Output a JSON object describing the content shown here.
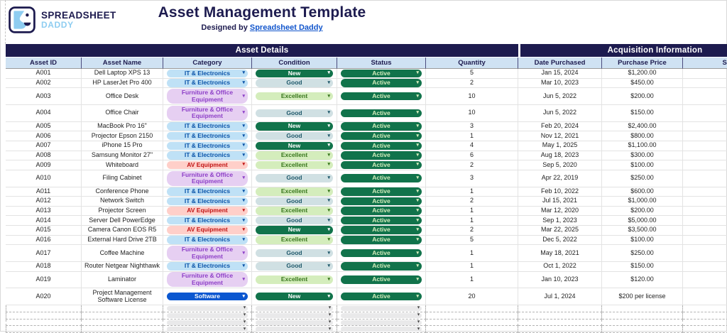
{
  "brand": {
    "name_line1": "SPREADSHEET",
    "name_line2": "DADDY"
  },
  "header": {
    "title": "Asset Management Template",
    "designed_by_prefix": "Designed by ",
    "designed_by_link": "Spreadsheet Daddy"
  },
  "sections": {
    "left": "Asset Details",
    "right": "Acquisition Information"
  },
  "columns": [
    "Asset ID",
    "Asset Name",
    "Category",
    "Condition",
    "Status",
    "Quantity",
    "Date Purchased",
    "Purchase Price",
    "Supplier"
  ],
  "colors": {
    "navy_band": "#1d1b4f",
    "header_row_bg": "#cfe2f3",
    "link_blue": "#1155cc",
    "logo_light_blue": "#8ecdf1",
    "active_green": "#11734b"
  },
  "chip_styles": {
    "IT & Electronics": {
      "bg": "#bfe1f6",
      "fg": "#0a53a8"
    },
    "Furniture & Office Equipment": {
      "bg": "#e6cff2",
      "fg": "#8d3fc7"
    },
    "AV Equipment": {
      "bg": "#ffcfc9",
      "fg": "#c01414"
    },
    "Software": {
      "bg": "#0b57d0",
      "fg": "#ffffff"
    },
    "New": {
      "bg": "#11734b",
      "fg": "#ffffff"
    },
    "Good": {
      "bg": "#d0e0e3",
      "fg": "#215a6c"
    },
    "Excellent": {
      "bg": "#d4edbc",
      "fg": "#38761d"
    },
    "Active": {
      "bg": "#11734b",
      "fg": "#d4edbc"
    },
    "empty": {
      "bg": "#e9e9ea",
      "fg": "#444444"
    }
  },
  "rows": [
    {
      "id": "A001",
      "name": "Dell Laptop XPS 13",
      "category": "IT & Electronics",
      "condition": "New",
      "status": "Active",
      "quantity": "5",
      "date_purchased": "Jan 15, 2024",
      "purchase_price": "$1,200.00",
      "supplier_visible": "Dell"
    },
    {
      "id": "A002",
      "name": "HP LaserJet Pro 400",
      "category": "IT & Electronics",
      "condition": "Good",
      "status": "Active",
      "quantity": "2",
      "date_purchased": "Mar 10, 2023",
      "purchase_price": "$450.00",
      "supplier_visible": "H"
    },
    {
      "id": "A003",
      "name": "Office Desk",
      "category": "Furniture & Office Equipment",
      "condition": "Excellent",
      "status": "Active",
      "quantity": "10",
      "date_purchased": "Jun 5, 2022",
      "purchase_price": "$200.00",
      "supplier_visible": "IKE"
    },
    {
      "id": "A004",
      "name": "Office Chair",
      "category": "Furniture & Office Equipment",
      "condition": "Good",
      "status": "Active",
      "quantity": "10",
      "date_purchased": "Jun 5, 2022",
      "purchase_price": "$150.00",
      "supplier_visible": "IKE"
    },
    {
      "id": "A005",
      "name": "MacBook Pro 16\"",
      "category": "IT & Electronics",
      "condition": "New",
      "status": "Active",
      "quantity": "3",
      "date_purchased": "Feb 20, 2024",
      "purchase_price": "$2,400.00",
      "supplier_visible": "Ap"
    },
    {
      "id": "A006",
      "name": "Projector Epson 2150",
      "category": "IT & Electronics",
      "condition": "Good",
      "status": "Active",
      "quantity": "1",
      "date_purchased": "Nov 12, 2021",
      "purchase_price": "$800.00",
      "supplier_visible": "Eps"
    },
    {
      "id": "A007",
      "name": "iPhone 15 Pro",
      "category": "IT & Electronics",
      "condition": "New",
      "status": "Active",
      "quantity": "4",
      "date_purchased": "May 1, 2025",
      "purchase_price": "$1,100.00",
      "supplier_visible": "Ap"
    },
    {
      "id": "A008",
      "name": "Samsung Monitor 27\"",
      "category": "IT & Electronics",
      "condition": "Excellent",
      "status": "Active",
      "quantity": "6",
      "date_purchased": "Aug 18, 2023",
      "purchase_price": "$300.00",
      "supplier_visible": "Sam"
    },
    {
      "id": "A009",
      "name": "Whiteboard",
      "category": "AV Equipment",
      "condition": "Excellent",
      "status": "Active",
      "quantity": "2",
      "date_purchased": "Sep 5, 2020",
      "purchase_price": "$100.00",
      "supplier_visible": "Offic"
    },
    {
      "id": "A010",
      "name": "Filing Cabinet",
      "category": "Furniture & Office Equipment",
      "condition": "Good",
      "status": "Active",
      "quantity": "3",
      "date_purchased": "Apr 22, 2019",
      "purchase_price": "$250.00",
      "supplier_visible": "Stap"
    },
    {
      "id": "A011",
      "name": "Conference Phone",
      "category": "IT & Electronics",
      "condition": "Excellent",
      "status": "Active",
      "quantity": "1",
      "date_purchased": "Feb 10, 2022",
      "purchase_price": "$600.00",
      "supplier_visible": "Cis"
    },
    {
      "id": "A012",
      "name": "Network Switch",
      "category": "IT & Electronics",
      "condition": "Good",
      "status": "Active",
      "quantity": "2",
      "date_purchased": "Jul 15, 2021",
      "purchase_price": "$1,000.00",
      "supplier_visible": "Cis"
    },
    {
      "id": "A013",
      "name": "Projector Screen",
      "category": "AV Equipment",
      "condition": "Excellent",
      "status": "Active",
      "quantity": "1",
      "date_purchased": "Mar 12, 2020",
      "purchase_price": "$200.00",
      "supplier_visible": "AVW"
    },
    {
      "id": "A014",
      "name": "Server Dell PowerEdge",
      "category": "IT & Electronics",
      "condition": "Good",
      "status": "Active",
      "quantity": "1",
      "date_purchased": "Sep 1, 2023",
      "purchase_price": "$5,000.00",
      "supplier_visible": "De"
    },
    {
      "id": "A015",
      "name": "Camera Canon EOS R5",
      "category": "AV Equipment",
      "condition": "New",
      "status": "Active",
      "quantity": "2",
      "date_purchased": "Mar 22, 2025",
      "purchase_price": "$3,500.00",
      "supplier_visible": "Can"
    },
    {
      "id": "A016",
      "name": "External Hard Drive 2TB",
      "category": "IT & Electronics",
      "condition": "Excellent",
      "status": "Active",
      "quantity": "5",
      "date_purchased": "Dec 5, 2022",
      "purchase_price": "$100.00",
      "supplier_visible": "Sea"
    },
    {
      "id": "A017",
      "name": "Coffee Machine",
      "category": "Furniture & Office Equipment",
      "condition": "Good",
      "status": "Active",
      "quantity": "1",
      "date_purchased": "May 18, 2021",
      "purchase_price": "$250.00",
      "supplier_visible": "Nesp"
    },
    {
      "id": "A018",
      "name": "Router Netgear Nighthawk",
      "category": "IT & Electronics",
      "condition": "Good",
      "status": "Active",
      "quantity": "1",
      "date_purchased": "Oct 1, 2022",
      "purchase_price": "$150.00",
      "supplier_visible": "Netg"
    },
    {
      "id": "A019",
      "name": "Laminator",
      "category": "Furniture & Office Equipment",
      "condition": "Excellent",
      "status": "Active",
      "quantity": "1",
      "date_purchased": "Jan 10, 2023",
      "purchase_price": "$120.00",
      "supplier_visible": "Fello"
    },
    {
      "id": "A020",
      "name": "Project Management Software License",
      "category": "Software",
      "condition": "New",
      "status": "Active",
      "quantity": "20",
      "date_purchased": "Jul 1, 2024",
      "purchase_price": "$200 per license",
      "supplier_visible": "Atlas"
    }
  ],
  "empty_row_count": 4
}
